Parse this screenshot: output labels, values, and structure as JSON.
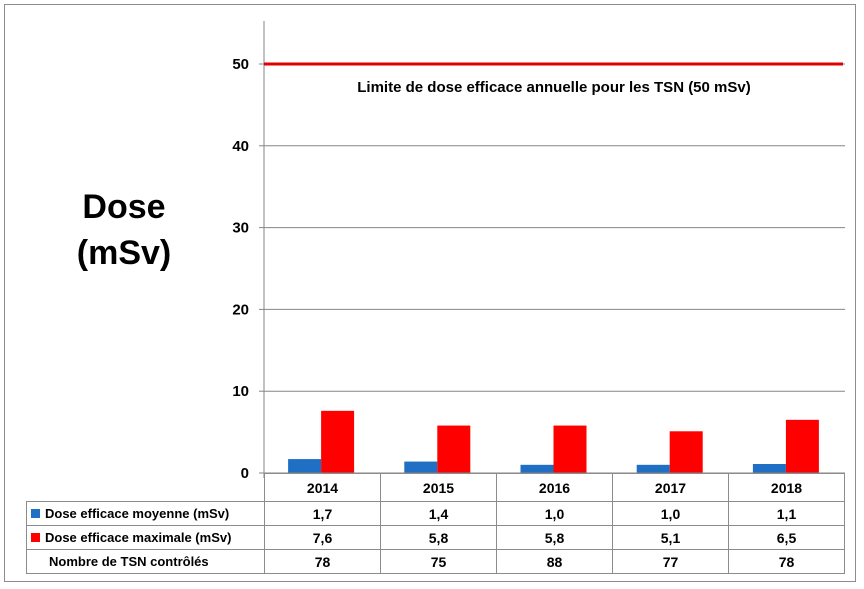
{
  "chart_data": {
    "type": "bar",
    "categories": [
      "2014",
      "2015",
      "2016",
      "2017",
      "2018"
    ],
    "series": [
      {
        "name": "Dose efficace moyenne (mSv)",
        "values": [
          1.7,
          1.4,
          1.0,
          1.0,
          1.1
        ],
        "color": "#1f6fc5",
        "labels": [
          "1,7",
          "1,4",
          "1,0",
          "1,0",
          "1,1"
        ]
      },
      {
        "name": "Dose efficace maximale (mSv)",
        "values": [
          7.6,
          5.8,
          5.8,
          5.1,
          6.5
        ],
        "color": "#ff0000",
        "labels": [
          "7,6",
          "5,8",
          "5,8",
          "5,1",
          "6,5"
        ]
      }
    ],
    "extra_row": {
      "name": "Nombre de TSN contrôlés",
      "values": [
        "78",
        "75",
        "88",
        "77",
        "78"
      ]
    },
    "ylabel_line1": "Dose",
    "ylabel_line2": "(mSv)",
    "ylim": [
      0,
      55
    ],
    "yticks": [
      0,
      10,
      20,
      30,
      40,
      50
    ],
    "grid": true,
    "limit_line": {
      "value": 50,
      "color": "#e00000",
      "label": "Limite de dose efficace annuelle pour les TSN (50 mSv)"
    }
  }
}
